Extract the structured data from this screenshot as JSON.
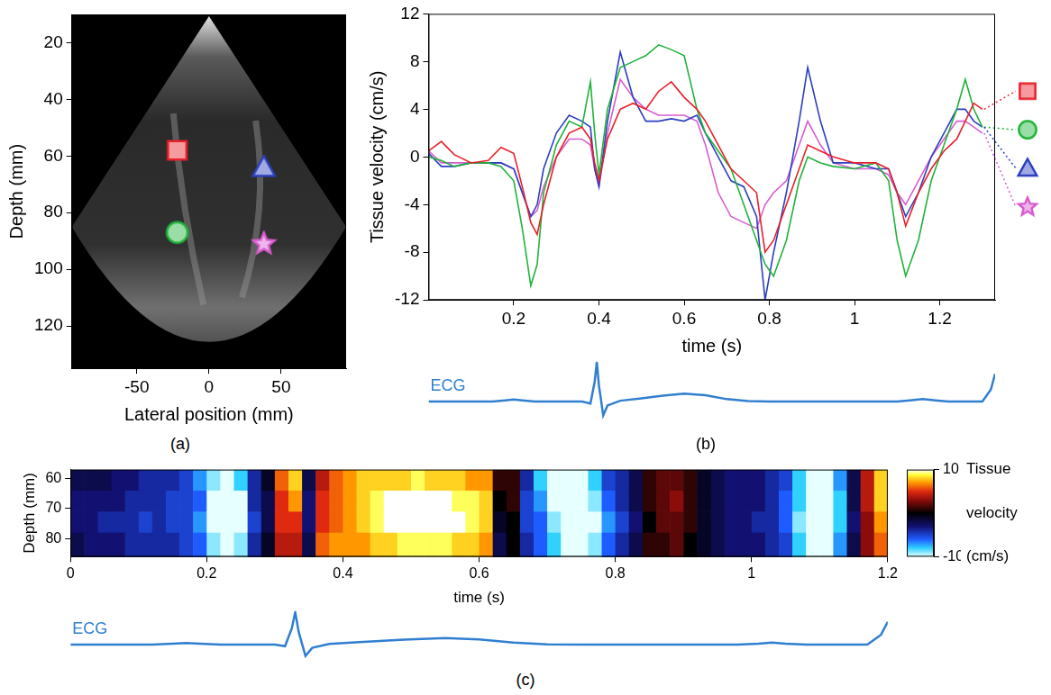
{
  "chart_data": [
    {
      "type": "scatter",
      "title": "(a)",
      "xlabel": "Lateral position (mm)",
      "ylabel": "Depth (mm)",
      "xlim": [
        -95,
        95
      ],
      "xticks": [
        -50,
        0,
        50
      ],
      "ylim": [
        135,
        10
      ],
      "yticks": [
        20,
        40,
        60,
        80,
        100,
        120
      ],
      "grid": false,
      "series": [
        {
          "marker": "square",
          "color": "#e8202a",
          "x": [
            -22
          ],
          "values": [
            58
          ]
        },
        {
          "marker": "circle",
          "color": "#1fb33a",
          "x": [
            -22
          ],
          "values": [
            87
          ]
        },
        {
          "marker": "triangle",
          "color": "#2b3fbf",
          "x": [
            38
          ],
          "values": [
            64
          ]
        },
        {
          "marker": "star",
          "color": "#d85cd0",
          "x": [
            38
          ],
          "values": [
            91
          ]
        }
      ]
    },
    {
      "type": "line",
      "title": "(b)",
      "xlabel": "time (s)",
      "ylabel": "Tissue velocity (cm/s)",
      "xlim": [
        0,
        1.33
      ],
      "xticks": [
        0.2,
        0.4,
        0.6,
        0.8,
        1,
        1.2
      ],
      "ylim": [
        -12,
        12
      ],
      "yticks": [
        -12,
        -8,
        -4,
        0,
        4,
        8,
        12
      ],
      "grid": false,
      "legend": "right",
      "x": [
        0,
        0.03,
        0.06,
        0.1,
        0.14,
        0.17,
        0.2,
        0.22,
        0.24,
        0.255,
        0.27,
        0.3,
        0.33,
        0.36,
        0.38,
        0.39,
        0.4,
        0.42,
        0.45,
        0.48,
        0.51,
        0.54,
        0.57,
        0.6,
        0.63,
        0.65,
        0.68,
        0.71,
        0.74,
        0.77,
        0.79,
        0.81,
        0.84,
        0.87,
        0.89,
        0.92,
        0.95,
        1,
        1.05,
        1.08,
        1.1,
        1.12,
        1.15,
        1.18,
        1.21,
        1.24,
        1.26,
        1.28,
        1.3
      ],
      "series": [
        {
          "marker": "square",
          "color": "#e8202a",
          "values": [
            0.5,
            1.3,
            0.2,
            -0.5,
            -0.3,
            0.8,
            0.3,
            -2.5,
            -5.5,
            -6.5,
            -4,
            0,
            2,
            2.5,
            1.5,
            -0.5,
            -2,
            1.5,
            4,
            4.5,
            4,
            5.5,
            6.3,
            5,
            4,
            3,
            1,
            -1,
            -2,
            -3,
            -8,
            -7,
            -4,
            -1,
            1,
            0.5,
            0,
            -0.5,
            -0.5,
            -1,
            -3,
            -5.8,
            -3,
            -1,
            0.5,
            1.5,
            3,
            4.5,
            4
          ]
        },
        {
          "marker": "circle",
          "color": "#1fb33a",
          "values": [
            0,
            -0.3,
            -0.8,
            -0.5,
            -0.5,
            -0.8,
            -2,
            -6,
            -10.8,
            -9,
            -3,
            1,
            3,
            2.5,
            6.3,
            2,
            -1.5,
            4,
            7.5,
            8,
            8.5,
            9.4,
            9,
            8.5,
            4,
            2,
            0.5,
            -1,
            -4,
            -7,
            -9,
            -10,
            -7,
            -2,
            0,
            -0.5,
            -0.8,
            -1,
            -0.5,
            -2,
            -7,
            -10,
            -7,
            -2,
            1,
            4,
            6.5,
            4,
            2.5
          ]
        },
        {
          "marker": "triangle",
          "color": "#2b3fbf",
          "values": [
            0.3,
            -0.8,
            -0.8,
            -0.5,
            -0.5,
            -0.5,
            -1,
            -3,
            -5,
            -4,
            -1,
            2,
            3.5,
            3,
            2.5,
            -1,
            -2.5,
            3,
            8.8,
            5,
            3,
            3,
            3.2,
            3,
            3.5,
            2,
            0,
            -2,
            -2.5,
            -5,
            -12,
            -8,
            -3,
            3,
            7.5,
            3,
            -0.5,
            -0.5,
            -1,
            -1,
            -3,
            -5,
            -3,
            0,
            2,
            4,
            4,
            3,
            2.5
          ]
        },
        {
          "marker": "star",
          "color": "#d85cd0",
          "values": [
            0.5,
            -0.5,
            -0.5,
            -0.5,
            -0.5,
            -0.5,
            -1,
            -3,
            -5,
            -4.5,
            -2.5,
            0,
            1.5,
            1.5,
            1,
            -1,
            -2.5,
            2,
            6.5,
            5,
            4,
            3.5,
            3.5,
            3.5,
            3,
            1,
            -3,
            -5,
            -5.5,
            -6,
            -4,
            -3,
            -2,
            1,
            3,
            1,
            -0.5,
            -1,
            -1,
            -1.5,
            -3,
            -4,
            -2,
            0,
            1.5,
            3,
            3,
            2.5,
            2
          ]
        }
      ],
      "ecg": {
        "label": "ECG",
        "color": "#2f7fd0",
        "x": [
          0,
          0.15,
          0.18,
          0.2,
          0.22,
          0.25,
          0.36,
          0.38,
          0.39,
          0.395,
          0.4,
          0.41,
          0.42,
          0.45,
          0.5,
          0.55,
          0.6,
          0.65,
          0.7,
          0.75,
          0.8,
          1.1,
          1.13,
          1.16,
          1.19,
          1.22,
          1.3,
          1.32,
          1.33
        ],
        "values": [
          0,
          0,
          0.03,
          0.05,
          0.03,
          0,
          0,
          -0.05,
          0.5,
          1,
          0.4,
          -0.35,
          -0.1,
          0.02,
          0.08,
          0.15,
          0.2,
          0.16,
          0.06,
          0.01,
          0,
          0,
          0.03,
          0.06,
          0.03,
          0,
          0,
          0.3,
          0.7
        ]
      }
    },
    {
      "type": "heatmap",
      "title": "(c)",
      "xlabel": "time (s)",
      "ylabel": "Depth (mm)",
      "xlim": [
        0,
        1.2
      ],
      "xticks": [
        0,
        0.2,
        0.4,
        0.6,
        0.8,
        1,
        1.2
      ],
      "ylim": [
        86,
        57
      ],
      "yticks": [
        60,
        70,
        80
      ],
      "grid": false,
      "x_edges": [
        0,
        0.02,
        0.04,
        0.06,
        0.08,
        0.1,
        0.12,
        0.14,
        0.16,
        0.18,
        0.2,
        0.22,
        0.24,
        0.26,
        0.28,
        0.3,
        0.32,
        0.34,
        0.36,
        0.38,
        0.4,
        0.42,
        0.44,
        0.46,
        0.48,
        0.5,
        0.52,
        0.54,
        0.56,
        0.58,
        0.6,
        0.62,
        0.64,
        0.66,
        0.68,
        0.7,
        0.72,
        0.74,
        0.76,
        0.78,
        0.8,
        0.82,
        0.84,
        0.86,
        0.88,
        0.9,
        0.92,
        0.94,
        0.96,
        0.98,
        1,
        1.02,
        1.04,
        1.06,
        1.08,
        1.1,
        1.12,
        1.14,
        1.16,
        1.18,
        1.2
      ],
      "y_edges": [
        57,
        64,
        71,
        78,
        86
      ],
      "cells": [
        [
          -2,
          -3,
          -3,
          -2
        ],
        [
          -2,
          -3,
          -3,
          -3
        ],
        [
          -2,
          -3,
          -4,
          -3
        ],
        [
          -3,
          -3,
          -4,
          -3
        ],
        [
          -3,
          -4,
          -4,
          -4
        ],
        [
          -4,
          -4,
          -5,
          -4
        ],
        [
          -4,
          -4,
          -4,
          -4
        ],
        [
          -4,
          -5,
          -5,
          -4
        ],
        [
          -5,
          -5,
          -5,
          -5
        ],
        [
          -7,
          -6,
          -7,
          -6
        ],
        [
          -9,
          -10,
          -10,
          -9
        ],
        [
          -10,
          -10,
          -10,
          -10
        ],
        [
          -8,
          -10,
          -10,
          -9
        ],
        [
          -4,
          -4,
          -5,
          -4
        ],
        [
          -1,
          -2,
          -2,
          -1
        ],
        [
          6,
          5,
          5,
          4
        ],
        [
          8,
          7,
          5,
          4
        ],
        [
          -2,
          -3,
          -3,
          -2
        ],
        [
          4,
          5,
          5,
          6
        ],
        [
          6,
          6,
          6,
          7
        ],
        [
          7,
          7,
          7,
          7
        ],
        [
          8,
          8,
          8,
          7
        ],
        [
          8,
          9,
          9,
          8
        ],
        [
          8,
          10,
          10,
          8
        ],
        [
          8,
          10,
          10,
          9
        ],
        [
          9,
          10,
          10,
          9
        ],
        [
          8,
          10,
          10,
          9
        ],
        [
          8,
          10,
          10,
          9
        ],
        [
          8,
          9,
          10,
          8
        ],
        [
          7,
          9,
          9,
          8
        ],
        [
          7,
          8,
          8,
          7
        ],
        [
          1,
          0,
          -1,
          -2
        ],
        [
          1,
          1,
          0,
          0
        ],
        [
          -4,
          -5,
          -5,
          -4
        ],
        [
          -8,
          -7,
          -6,
          -6
        ],
        [
          -10,
          -10,
          -9,
          -8
        ],
        [
          -10,
          -10,
          -10,
          -10
        ],
        [
          -10,
          -10,
          -10,
          -10
        ],
        [
          -8,
          -9,
          -10,
          -9
        ],
        [
          -5,
          -6,
          -7,
          -6
        ],
        [
          -4,
          -4,
          -5,
          -4
        ],
        [
          -2,
          -2,
          -3,
          -2
        ],
        [
          1,
          1,
          0,
          1
        ],
        [
          2,
          2,
          2,
          1
        ],
        [
          2,
          3,
          2,
          2
        ],
        [
          1,
          1,
          1,
          0
        ],
        [
          -1,
          -1,
          -1,
          -1
        ],
        [
          -2,
          -2,
          -2,
          -2
        ],
        [
          -3,
          -3,
          -3,
          -3
        ],
        [
          -3,
          -3,
          -3,
          -3
        ],
        [
          -3,
          -3,
          -4,
          -3
        ],
        [
          -4,
          -4,
          -4,
          -4
        ],
        [
          -5,
          -6,
          -6,
          -5
        ],
        [
          -8,
          -8,
          -9,
          -8
        ],
        [
          -10,
          -10,
          -10,
          -10
        ],
        [
          -10,
          -10,
          -10,
          -10
        ],
        [
          -7,
          -8,
          -8,
          -7
        ],
        [
          -2,
          -2,
          -3,
          -2
        ],
        [
          4,
          4,
          3,
          3
        ],
        [
          8,
          8,
          7,
          6
        ]
      ],
      "colorbar": {
        "label": "Tissue velocity (cm/s)",
        "range": [
          -10,
          10
        ],
        "ticks": [
          -10,
          10
        ]
      },
      "ecg": {
        "label": "ECG",
        "color": "#2f7fd0",
        "x": [
          0,
          0.12,
          0.15,
          0.17,
          0.19,
          0.22,
          0.3,
          0.315,
          0.325,
          0.33,
          0.335,
          0.345,
          0.355,
          0.38,
          0.43,
          0.49,
          0.55,
          0.6,
          0.65,
          0.7,
          0.75,
          0.98,
          1.01,
          1.03,
          1.05,
          1.08,
          1.17,
          1.19,
          1.2
        ],
        "values": [
          0,
          0,
          0.03,
          0.05,
          0.03,
          0,
          0,
          -0.05,
          0.5,
          1,
          0.4,
          -0.35,
          -0.1,
          0.02,
          0.08,
          0.15,
          0.2,
          0.16,
          0.06,
          0.01,
          0,
          0,
          0.03,
          0.06,
          0.03,
          0,
          0,
          0.3,
          0.7
        ]
      }
    }
  ]
}
